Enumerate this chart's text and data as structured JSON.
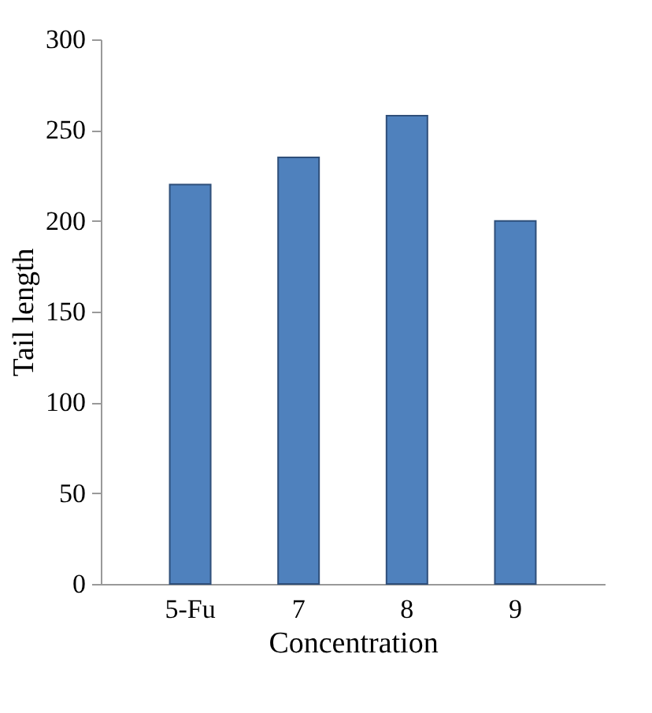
{
  "chart_data": {
    "type": "bar",
    "xlabel": "Concentration",
    "ylabel": "Tail length",
    "categories": [
      "5-Fu",
      "7",
      "8",
      "9"
    ],
    "values": [
      220,
      235,
      258,
      200
    ],
    "color": "#4f81bd",
    "ylim": [
      0,
      300
    ],
    "yticks": [
      0,
      50,
      100,
      150,
      200,
      250,
      300
    ],
    "grid": false
  }
}
